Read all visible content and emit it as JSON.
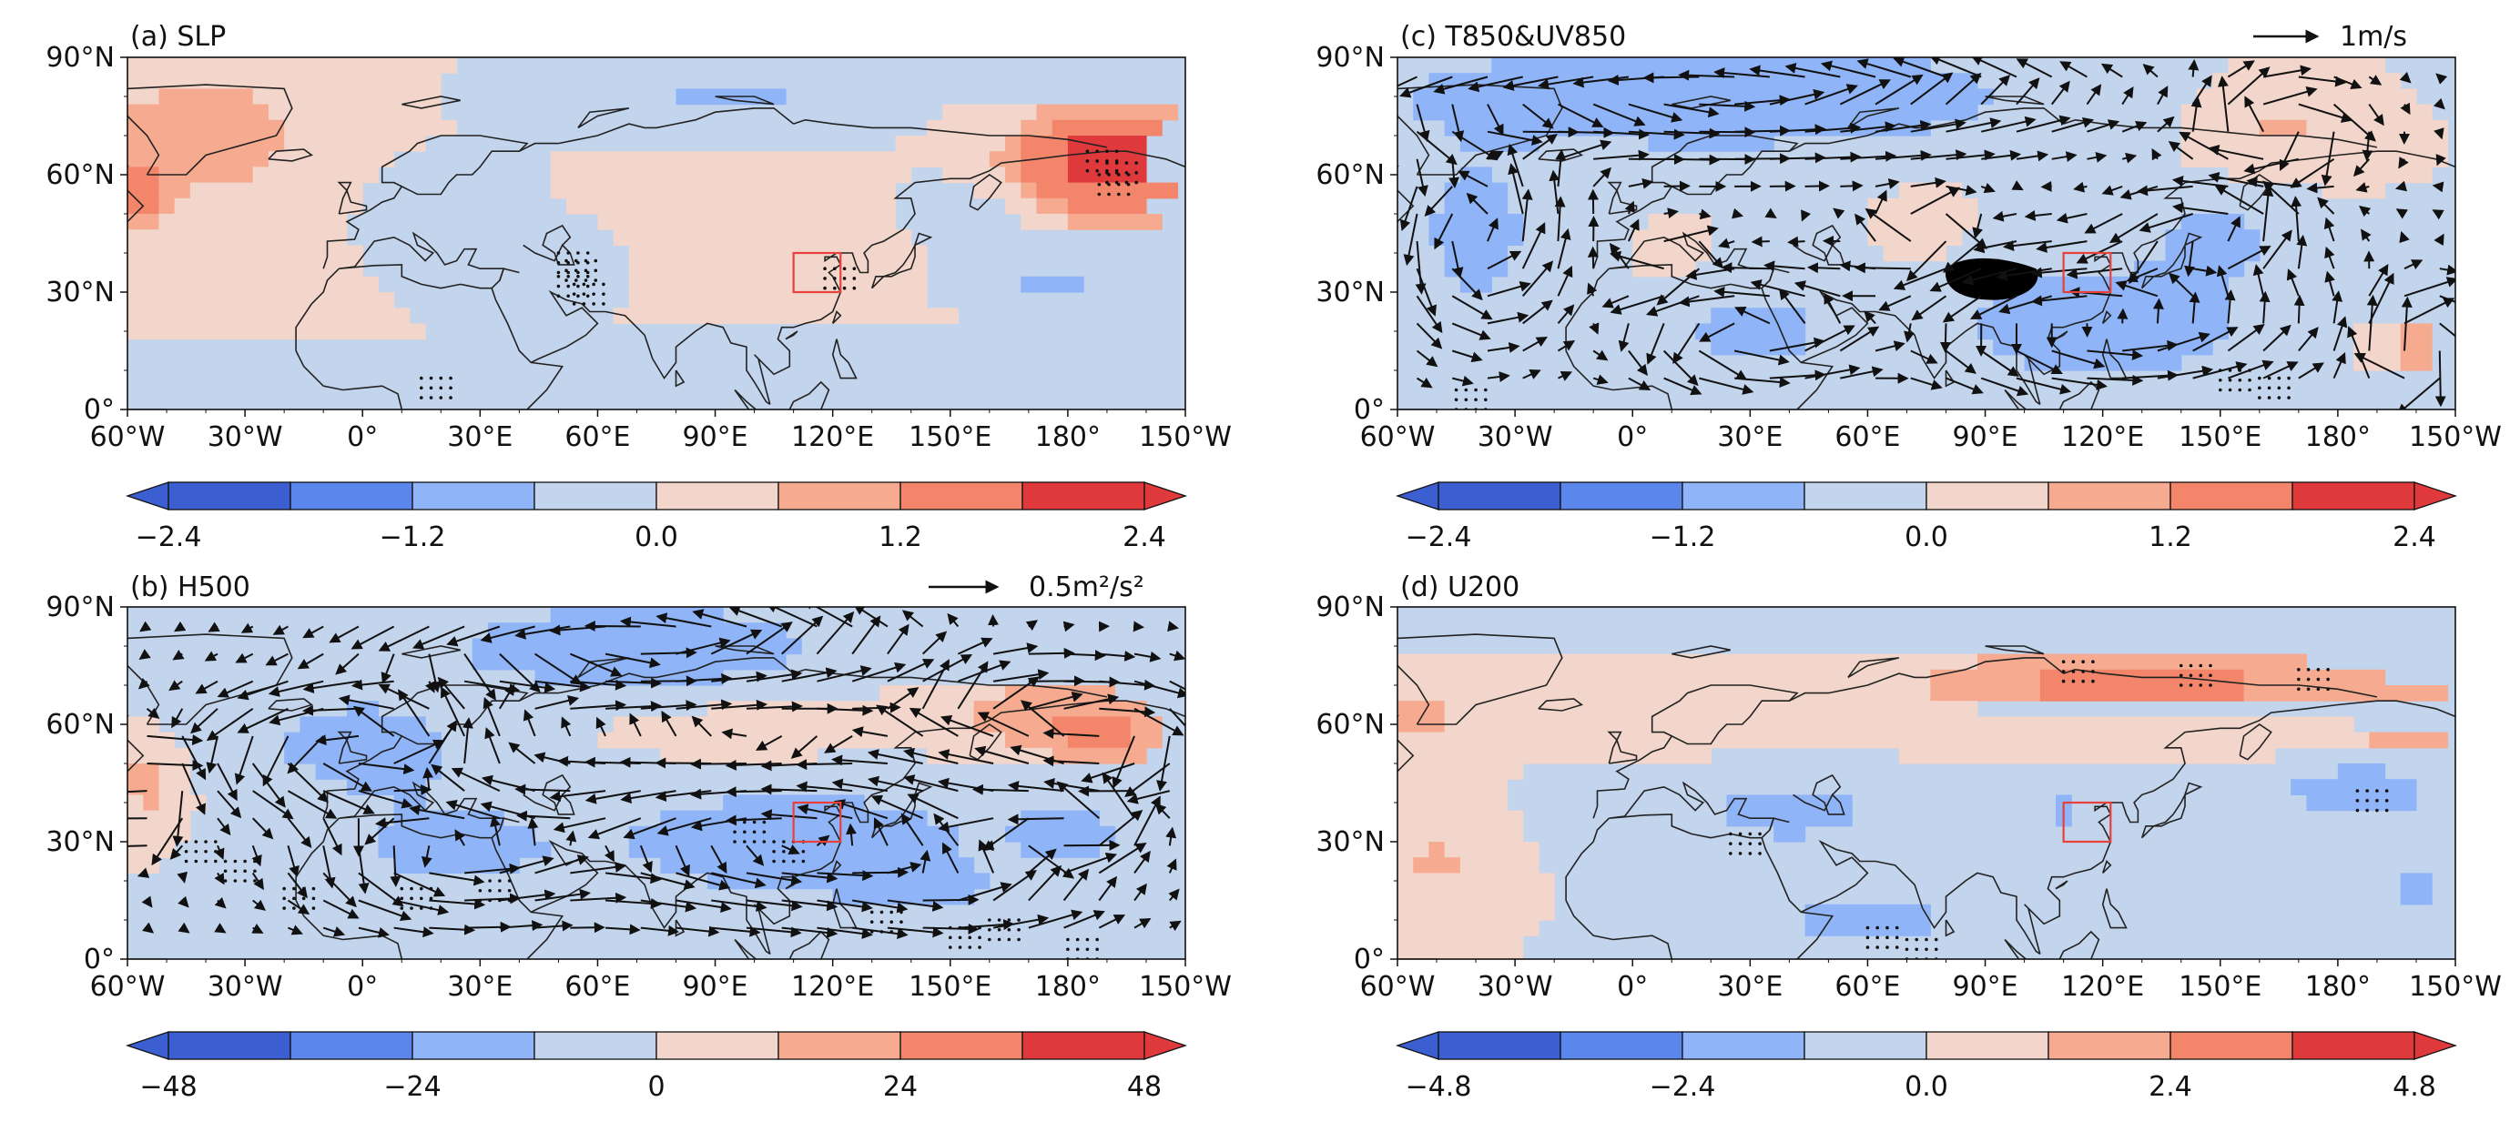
{
  "figure": {
    "colors": {
      "scale": [
        "#3b5fd1",
        "#5b86ec",
        "#8fb4f7",
        "#c3d4ed",
        "#f2d5cb",
        "#f6ab90",
        "#f3866a",
        "#e0393c"
      ],
      "box": "#e8403a",
      "coast": "#222222"
    }
  },
  "chart_data": [
    {
      "id": "a",
      "type": "heatmap",
      "title": "(a) SLP",
      "x_ticks": [
        "60°W",
        "30°W",
        "0°",
        "30°E",
        "60°E",
        "90°E",
        "120°E",
        "150°E",
        "180°",
        "150°W"
      ],
      "y_ticks": [
        "90°N",
        "60°N",
        "30°N",
        "0°"
      ],
      "xlim": [
        -60,
        210
      ],
      "ylim": [
        0,
        90
      ],
      "levels": [
        -3.0,
        -2.4,
        -1.8,
        -1.2,
        -0.6,
        0.0,
        0.6,
        1.2,
        1.8,
        2.4,
        3.0
      ],
      "colorbar_ticks": [
        "−2.4",
        "−1.2",
        "0.0",
        "1.2",
        "2.4"
      ],
      "colorbar_tick_values": [
        -2.4,
        -1.2,
        0.0,
        1.2,
        2.4
      ],
      "vectors": false,
      "vector_key": null,
      "anomalies": [
        {
          "lon": 190,
          "lat": 63,
          "value": 3.2,
          "rx": 22,
          "ry": 13
        },
        {
          "lon": -40,
          "lat": 70,
          "value": 1.0,
          "rx": 28,
          "ry": 18
        },
        {
          "lon": -57,
          "lat": 55,
          "value": 1.3,
          "rx": 8,
          "ry": 10
        },
        {
          "lon": 115,
          "lat": 32,
          "value": 0.5,
          "rx": 22,
          "ry": 18
        },
        {
          "lon": 85,
          "lat": 55,
          "value": 0.4,
          "rx": 18,
          "ry": 8
        },
        {
          "lon": 95,
          "lat": 80,
          "value": -0.7,
          "rx": 35,
          "ry": 7
        },
        {
          "lon": 20,
          "lat": 52,
          "value": -0.6,
          "rx": 14,
          "ry": 9
        },
        {
          "lon": 45,
          "lat": 37,
          "value": -0.5,
          "rx": 12,
          "ry": 8
        },
        {
          "lon": 175,
          "lat": 33,
          "value": -0.7,
          "rx": 24,
          "ry": 7
        },
        {
          "lon": 155,
          "lat": 50,
          "value": -0.5,
          "rx": 14,
          "ry": 8
        },
        {
          "lon": 150,
          "lat": 12,
          "value": 0.3,
          "rx": 45,
          "ry": 8
        }
      ],
      "stipple": [
        [
          50,
          40
        ],
        [
          52,
          38
        ],
        [
          50,
          34
        ],
        [
          54,
          32
        ],
        [
          118,
          36
        ],
        [
          190,
          63
        ],
        [
          188,
          60
        ],
        [
          185,
          66
        ],
        [
          15,
          8
        ]
      ],
      "box": {
        "lon": [
          110,
          122
        ],
        "lat": [
          30,
          40
        ]
      }
    },
    {
      "id": "b",
      "type": "heatmap",
      "title": "(b) H500",
      "x_ticks": [
        "60°W",
        "30°W",
        "0°",
        "30°E",
        "60°E",
        "90°E",
        "120°E",
        "150°E",
        "180°",
        "150°W"
      ],
      "y_ticks": [
        "90°N",
        "60°N",
        "30°N",
        "0°"
      ],
      "xlim": [
        -60,
        210
      ],
      "ylim": [
        0,
        90
      ],
      "levels": [
        -60,
        -48,
        -36,
        -24,
        -12,
        0,
        12,
        24,
        36,
        48,
        60
      ],
      "colorbar_ticks": [
        "−48",
        "−24",
        "0",
        "24",
        "48"
      ],
      "colorbar_tick_values": [
        -48,
        -24,
        0,
        24,
        48
      ],
      "vectors": true,
      "vector_key": "0.5m²/s²",
      "anomalies": [
        {
          "lon": 70,
          "lat": 80,
          "value": -30,
          "rx": 45,
          "ry": 10
        },
        {
          "lon": 0,
          "lat": 55,
          "value": -18,
          "rx": 30,
          "ry": 14
        },
        {
          "lon": 110,
          "lat": 30,
          "value": -20,
          "rx": 55,
          "ry": 16
        },
        {
          "lon": 20,
          "lat": 28,
          "value": -15,
          "rx": 30,
          "ry": 14
        },
        {
          "lon": 190,
          "lat": 58,
          "value": 28,
          "rx": 16,
          "ry": 10
        },
        {
          "lon": 165,
          "lat": 62,
          "value": 16,
          "rx": 20,
          "ry": 10
        },
        {
          "lon": 100,
          "lat": 57,
          "value": 7,
          "rx": 28,
          "ry": 7
        },
        {
          "lon": -55,
          "lat": 45,
          "value": 18,
          "rx": 8,
          "ry": 9
        },
        {
          "lon": 180,
          "lat": 33,
          "value": -20,
          "rx": 12,
          "ry": 7
        },
        {
          "lon": 150,
          "lat": 15,
          "value": -8,
          "rx": 30,
          "ry": 10
        }
      ],
      "stipple": [
        [
          -45,
          30
        ],
        [
          -35,
          25
        ],
        [
          -20,
          18
        ],
        [
          10,
          18
        ],
        [
          30,
          20
        ],
        [
          95,
          35
        ],
        [
          105,
          30
        ],
        [
          130,
          12
        ],
        [
          150,
          8
        ],
        [
          160,
          10
        ],
        [
          180,
          5
        ]
      ],
      "box": {
        "lon": [
          110,
          122
        ],
        "lat": [
          30,
          40
        ]
      }
    },
    {
      "id": "c",
      "type": "heatmap",
      "title": "(c) T850&UV850",
      "x_ticks": [
        "60°W",
        "30°W",
        "0°",
        "30°E",
        "60°E",
        "90°E",
        "120°E",
        "150°E",
        "180°",
        "150°W"
      ],
      "y_ticks": [
        "90°N",
        "60°N",
        "30°N",
        "0°"
      ],
      "xlim": [
        -60,
        210
      ],
      "ylim": [
        0,
        90
      ],
      "levels": [
        -3.0,
        -2.4,
        -1.8,
        -1.2,
        -0.6,
        0.0,
        0.6,
        1.2,
        1.8,
        2.4,
        3.0
      ],
      "colorbar_ticks": [
        "−2.4",
        "−1.2",
        "0.0",
        "1.2",
        "2.4"
      ],
      "colorbar_tick_values": [
        -2.4,
        -1.2,
        0.0,
        1.2,
        2.4
      ],
      "vectors": true,
      "vector_key": "1m/s",
      "anomalies": [
        {
          "lon": 20,
          "lat": 80,
          "value": -1.7,
          "rx": 70,
          "ry": 12
        },
        {
          "lon": 120,
          "lat": 22,
          "value": -1.0,
          "rx": 45,
          "ry": 18
        },
        {
          "lon": -40,
          "lat": 45,
          "value": -0.8,
          "rx": 20,
          "ry": 25
        },
        {
          "lon": 30,
          "lat": 20,
          "value": -0.8,
          "rx": 25,
          "ry": 12
        },
        {
          "lon": 165,
          "lat": 72,
          "value": 0.7,
          "rx": 16,
          "ry": 10
        },
        {
          "lon": 200,
          "lat": 15,
          "value": 0.8,
          "rx": 12,
          "ry": 12
        },
        {
          "lon": 75,
          "lat": 45,
          "value": 0.4,
          "rx": 10,
          "ry": 8
        },
        {
          "lon": 10,
          "lat": 38,
          "value": 0.3,
          "rx": 8,
          "ry": 6
        },
        {
          "lon": 150,
          "lat": 45,
          "value": -0.7,
          "rx": 18,
          "ry": 10
        }
      ],
      "stipple": [
        [
          150,
          10
        ],
        [
          160,
          8
        ],
        [
          -45,
          5
        ]
      ],
      "box": {
        "lon": [
          110,
          122
        ],
        "lat": [
          30,
          40
        ]
      }
    },
    {
      "id": "d",
      "type": "heatmap",
      "title": "(d) U200",
      "x_ticks": [
        "60°W",
        "30°W",
        "0°",
        "30°E",
        "60°E",
        "90°E",
        "120°E",
        "150°E",
        "180°",
        "150°W"
      ],
      "y_ticks": [
        "90°N",
        "60°N",
        "30°N",
        "0°"
      ],
      "xlim": [
        -60,
        210
      ],
      "ylim": [
        0,
        90
      ],
      "levels": [
        -6.0,
        -4.8,
        -3.6,
        -2.4,
        -1.2,
        0.0,
        1.2,
        2.4,
        3.6,
        4.8,
        6.0
      ],
      "colorbar_ticks": [
        "−4.8",
        "−2.4",
        "0.0",
        "2.4",
        "4.8"
      ],
      "colorbar_tick_values": [
        -4.8,
        -2.4,
        0.0,
        2.4,
        4.8
      ],
      "vectors": false,
      "vector_key": null,
      "anomalies": [
        {
          "lon": 130,
          "lat": 70,
          "value": 3.0,
          "rx": 60,
          "ry": 9
        },
        {
          "lon": 200,
          "lat": 60,
          "value": 2.0,
          "rx": 18,
          "ry": 8
        },
        {
          "lon": -55,
          "lat": 62,
          "value": 1.5,
          "rx": 12,
          "ry": 10
        },
        {
          "lon": 185,
          "lat": 43,
          "value": -3.0,
          "rx": 16,
          "ry": 6
        },
        {
          "lon": 40,
          "lat": 37,
          "value": -1.8,
          "rx": 28,
          "ry": 8
        },
        {
          "lon": 110,
          "lat": 38,
          "value": -1.3,
          "rx": 20,
          "ry": 7
        },
        {
          "lon": 60,
          "lat": 10,
          "value": -2.0,
          "rx": 25,
          "ry": 7
        },
        {
          "lon": 200,
          "lat": 18,
          "value": -1.5,
          "rx": 10,
          "ry": 8
        },
        {
          "lon": -50,
          "lat": 25,
          "value": 1.5,
          "rx": 10,
          "ry": 8
        },
        {
          "lon": 5,
          "lat": 60,
          "value": 1.0,
          "rx": 10,
          "ry": 6
        }
      ],
      "stipple": [
        [
          110,
          76
        ],
        [
          140,
          75
        ],
        [
          170,
          74
        ],
        [
          185,
          43
        ],
        [
          25,
          32
        ],
        [
          60,
          8
        ],
        [
          70,
          5
        ]
      ],
      "box": {
        "lon": [
          110,
          122
        ],
        "lat": [
          30,
          40
        ]
      }
    }
  ]
}
